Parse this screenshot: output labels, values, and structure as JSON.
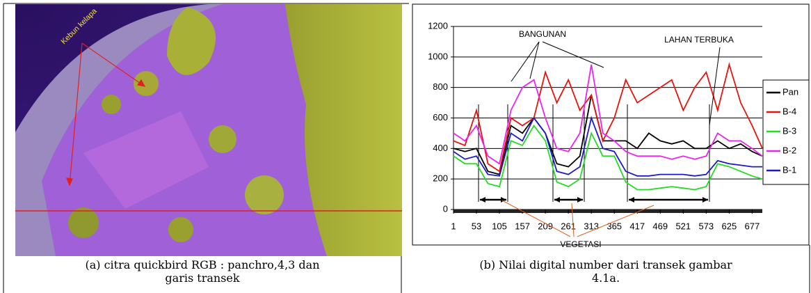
{
  "figure_a": {
    "label": "Kebun kelapa",
    "caption": [
      "(a)  citra quickbird RGB : panchro,4,3 dan",
      "garis transek"
    ]
  },
  "chart_data": {
    "type": "line",
    "annotations": [
      "BANGUNAN",
      "LAHAN TERBUKA",
      "VEGETASI"
    ],
    "x": [
      1,
      27,
      53,
      79,
      105,
      131,
      157,
      183,
      209,
      235,
      261,
      287,
      313,
      339,
      365,
      391,
      417,
      443,
      469,
      495,
      521,
      547,
      573,
      599,
      625,
      651,
      677,
      700
    ],
    "xlim": [
      1,
      700
    ],
    "xticks": [
      1,
      53,
      105,
      157,
      209,
      261,
      313,
      365,
      417,
      469,
      521,
      573,
      625,
      677
    ],
    "ylim": [
      0,
      1200
    ],
    "yticks": [
      0,
      200,
      400,
      600,
      800,
      1000,
      1200
    ],
    "grid": true,
    "legend": "right",
    "series": [
      {
        "name": "Pan",
        "color": "#000000",
        "values": [
          400,
          380,
          400,
          250,
          230,
          550,
          500,
          600,
          500,
          300,
          280,
          350,
          750,
          450,
          450,
          450,
          400,
          500,
          450,
          430,
          450,
          400,
          400,
          450,
          400,
          430,
          380,
          350
        ]
      },
      {
        "name": "B-4",
        "color": "#e8120c",
        "values": [
          450,
          420,
          650,
          300,
          250,
          600,
          550,
          600,
          900,
          700,
          850,
          650,
          750,
          450,
          600,
          850,
          700,
          750,
          800,
          850,
          650,
          800,
          900,
          650,
          950,
          700,
          550,
          400
        ]
      },
      {
        "name": "B-3",
        "color": "#22dd22",
        "values": [
          350,
          300,
          300,
          170,
          150,
          450,
          420,
          550,
          450,
          180,
          150,
          200,
          500,
          350,
          350,
          180,
          130,
          130,
          140,
          150,
          140,
          130,
          150,
          300,
          280,
          250,
          220,
          200
        ]
      },
      {
        "name": "B-2",
        "color": "#ee22ee",
        "values": [
          500,
          450,
          550,
          350,
          300,
          650,
          800,
          850,
          600,
          400,
          380,
          500,
          950,
          500,
          450,
          380,
          350,
          350,
          350,
          330,
          350,
          330,
          350,
          500,
          450,
          450,
          400,
          350
        ]
      },
      {
        "name": "B-1",
        "color": "#1a1acc",
        "values": [
          380,
          330,
          350,
          230,
          220,
          500,
          450,
          600,
          500,
          250,
          230,
          280,
          600,
          400,
          380,
          250,
          220,
          220,
          230,
          230,
          230,
          220,
          230,
          320,
          300,
          290,
          280,
          280
        ]
      }
    ]
  },
  "caption_b": [
    "(b) Nilai digital number dari transek gambar",
    "4.1a."
  ]
}
